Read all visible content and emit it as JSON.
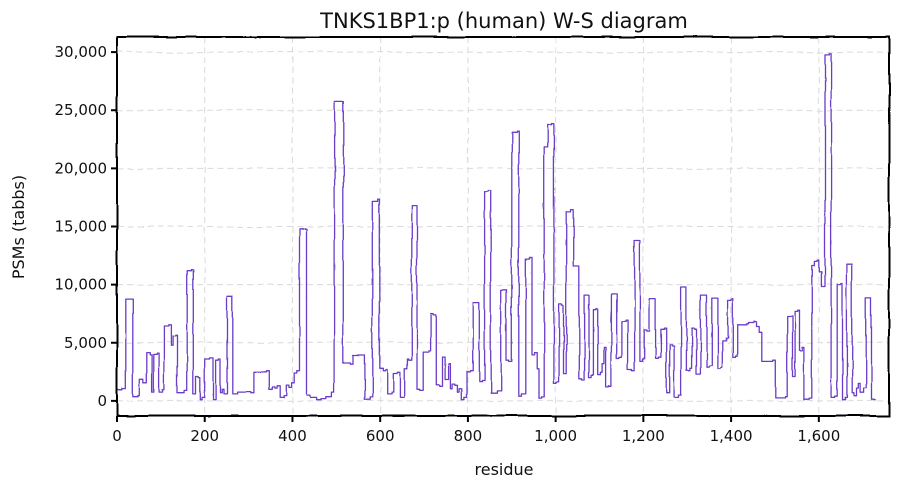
{
  "chart_data": {
    "type": "line",
    "title": "TNKS1BP1:p (human) W-S diagram",
    "xlabel": "residue",
    "ylabel": "PSMs (tabbs)",
    "xlim": [
      0,
      1760
    ],
    "ylim": [
      -1300,
      31300
    ],
    "grid": true,
    "grid_style": "dashed",
    "style": "hand-drawn",
    "line_style": "step",
    "x_ticks": [
      0,
      200,
      400,
      600,
      800,
      1000,
      1200,
      1400,
      1600
    ],
    "x_tick_labels": [
      "0",
      "200",
      "400",
      "600",
      "800",
      "1,000",
      "1,200",
      "1,400",
      "1,600"
    ],
    "y_ticks": [
      0,
      5000,
      10000,
      15000,
      20000,
      25000,
      30000
    ],
    "y_tick_labels": [
      "0",
      "5,000",
      "10,000",
      "15,000",
      "20,000",
      "25,000",
      "30,000"
    ],
    "colors": {
      "line": "#6a3cc9",
      "frame": "#000000",
      "grid": "#d9d9d9"
    },
    "series": [
      {
        "points": [
          [
            0,
            1000
          ],
          [
            12,
            1100
          ],
          [
            20,
            8800
          ],
          [
            32,
            8800
          ],
          [
            36,
            400
          ],
          [
            48,
            500
          ],
          [
            52,
            1900
          ],
          [
            60,
            1600
          ],
          [
            68,
            4200
          ],
          [
            76,
            4000
          ],
          [
            80,
            800
          ],
          [
            84,
            4000
          ],
          [
            92,
            4100
          ],
          [
            96,
            800
          ],
          [
            104,
            1000
          ],
          [
            108,
            6400
          ],
          [
            118,
            6500
          ],
          [
            124,
            4700
          ],
          [
            128,
            5500
          ],
          [
            134,
            5600
          ],
          [
            138,
            700
          ],
          [
            148,
            700
          ],
          [
            154,
            900
          ],
          [
            160,
            11200
          ],
          [
            170,
            11300
          ],
          [
            174,
            600
          ],
          [
            180,
            2100
          ],
          [
            186,
            2000
          ],
          [
            190,
            100
          ],
          [
            194,
            300
          ],
          [
            200,
            3600
          ],
          [
            212,
            3700
          ],
          [
            220,
            100
          ],
          [
            226,
            3500
          ],
          [
            232,
            3600
          ],
          [
            236,
            700
          ],
          [
            240,
            1000
          ],
          [
            244,
            600
          ],
          [
            252,
            9000
          ],
          [
            260,
            9000
          ],
          [
            264,
            600
          ],
          [
            275,
            800
          ],
          [
            305,
            700
          ],
          [
            312,
            2500
          ],
          [
            340,
            2600
          ],
          [
            346,
            1000
          ],
          [
            354,
            1200
          ],
          [
            360,
            1100
          ],
          [
            365,
            1300
          ],
          [
            372,
            300
          ],
          [
            380,
            500
          ],
          [
            386,
            1400
          ],
          [
            392,
            1200
          ],
          [
            398,
            1600
          ],
          [
            404,
            2400
          ],
          [
            410,
            2600
          ],
          [
            416,
            14800
          ],
          [
            425,
            14800
          ],
          [
            432,
            500
          ],
          [
            440,
            300
          ],
          [
            455,
            100
          ],
          [
            465,
            200
          ],
          [
            476,
            400
          ],
          [
            490,
            800
          ],
          [
            496,
            25800
          ],
          [
            512,
            25800
          ],
          [
            516,
            3300
          ],
          [
            532,
            3200
          ],
          [
            538,
            3900
          ],
          [
            560,
            3900
          ],
          [
            564,
            100
          ],
          [
            576,
            300
          ],
          [
            582,
            17200
          ],
          [
            594,
            17400
          ],
          [
            598,
            2800
          ],
          [
            606,
            2600
          ],
          [
            612,
            2700
          ],
          [
            616,
            600
          ],
          [
            626,
            800
          ],
          [
            630,
            2400
          ],
          [
            640,
            2500
          ],
          [
            646,
            300
          ],
          [
            656,
            2800
          ],
          [
            662,
            3600
          ],
          [
            665,
            3500
          ],
          [
            672,
            16800
          ],
          [
            680,
            16800
          ],
          [
            684,
            1000
          ],
          [
            690,
            900
          ],
          [
            698,
            4200
          ],
          [
            712,
            4300
          ],
          [
            716,
            7500
          ],
          [
            722,
            7400
          ],
          [
            728,
            1300
          ],
          [
            736,
            1200
          ],
          [
            742,
            3800
          ],
          [
            748,
            1800
          ],
          [
            756,
            3200
          ],
          [
            760,
            1000
          ],
          [
            764,
            1400
          ],
          [
            770,
            1300
          ],
          [
            776,
            700
          ],
          [
            780,
            1000
          ],
          [
            786,
            100
          ],
          [
            792,
            300
          ],
          [
            798,
            2500
          ],
          [
            806,
            2600
          ],
          [
            812,
            8500
          ],
          [
            822,
            8500
          ],
          [
            826,
            1700
          ],
          [
            832,
            1800
          ],
          [
            838,
            18000
          ],
          [
            846,
            18100
          ],
          [
            852,
            700
          ],
          [
            866,
            900
          ],
          [
            876,
            9600
          ],
          [
            884,
            9600
          ],
          [
            888,
            3500
          ],
          [
            894,
            3400
          ],
          [
            900,
            23100
          ],
          [
            912,
            23200
          ],
          [
            916,
            400
          ],
          [
            922,
            600
          ],
          [
            932,
            12200
          ],
          [
            940,
            12300
          ],
          [
            946,
            4000
          ],
          [
            952,
            4200
          ],
          [
            958,
            2800
          ],
          [
            962,
            200
          ],
          [
            968,
            300
          ],
          [
            974,
            21800
          ],
          [
            982,
            23700
          ],
          [
            990,
            23800
          ],
          [
            996,
            1500
          ],
          [
            1002,
            1600
          ],
          [
            1008,
            8300
          ],
          [
            1014,
            8200
          ],
          [
            1018,
            2300
          ],
          [
            1024,
            16300
          ],
          [
            1034,
            16500
          ],
          [
            1040,
            11600
          ],
          [
            1048,
            11600
          ],
          [
            1054,
            1900
          ],
          [
            1060,
            1800
          ],
          [
            1066,
            9100
          ],
          [
            1072,
            9100
          ],
          [
            1076,
            2000
          ],
          [
            1082,
            2200
          ],
          [
            1086,
            7800
          ],
          [
            1092,
            7900
          ],
          [
            1096,
            2300
          ],
          [
            1102,
            2500
          ],
          [
            1106,
            3200
          ],
          [
            1110,
            4600
          ],
          [
            1114,
            1200
          ],
          [
            1120,
            1300
          ],
          [
            1126,
            9200
          ],
          [
            1134,
            9200
          ],
          [
            1138,
            3600
          ],
          [
            1144,
            3700
          ],
          [
            1150,
            6800
          ],
          [
            1160,
            6900
          ],
          [
            1164,
            2700
          ],
          [
            1174,
            2600
          ],
          [
            1180,
            13800
          ],
          [
            1188,
            13800
          ],
          [
            1192,
            3400
          ],
          [
            1198,
            3600
          ],
          [
            1202,
            6100
          ],
          [
            1208,
            6000
          ],
          [
            1214,
            8800
          ],
          [
            1222,
            8800
          ],
          [
            1228,
            3700
          ],
          [
            1234,
            3800
          ],
          [
            1240,
            6200
          ],
          [
            1248,
            6300
          ],
          [
            1252,
            700
          ],
          [
            1260,
            4900
          ],
          [
            1266,
            4800
          ],
          [
            1270,
            300
          ],
          [
            1280,
            500
          ],
          [
            1286,
            9800
          ],
          [
            1294,
            9800
          ],
          [
            1298,
            2600
          ],
          [
            1306,
            2800
          ],
          [
            1310,
            6300
          ],
          [
            1316,
            6200
          ],
          [
            1320,
            2300
          ],
          [
            1330,
            9100
          ],
          [
            1340,
            9100
          ],
          [
            1344,
            2900
          ],
          [
            1350,
            3000
          ],
          [
            1356,
            8800
          ],
          [
            1364,
            8800
          ],
          [
            1370,
            2700
          ],
          [
            1376,
            2800
          ],
          [
            1380,
            5200
          ],
          [
            1388,
            5400
          ],
          [
            1392,
            8600
          ],
          [
            1400,
            8700
          ],
          [
            1404,
            3700
          ],
          [
            1410,
            3800
          ],
          [
            1414,
            6500
          ],
          [
            1436,
            6600
          ],
          [
            1440,
            6700
          ],
          [
            1452,
            6800
          ],
          [
            1458,
            6400
          ],
          [
            1464,
            5900
          ],
          [
            1470,
            3400
          ],
          [
            1496,
            3500
          ],
          [
            1502,
            300
          ],
          [
            1524,
            400
          ],
          [
            1528,
            7300
          ],
          [
            1536,
            7300
          ],
          [
            1540,
            2100
          ],
          [
            1546,
            7700
          ],
          [
            1552,
            7800
          ],
          [
            1556,
            4300
          ],
          [
            1562,
            4600
          ],
          [
            1566,
            100
          ],
          [
            1578,
            200
          ],
          [
            1584,
            11600
          ],
          [
            1590,
            12000
          ],
          [
            1596,
            12100
          ],
          [
            1600,
            11100
          ],
          [
            1606,
            9800
          ],
          [
            1614,
            29800
          ],
          [
            1624,
            29900
          ],
          [
            1628,
            300
          ],
          [
            1636,
            400
          ],
          [
            1642,
            10000
          ],
          [
            1650,
            10100
          ],
          [
            1654,
            100
          ],
          [
            1660,
            300
          ],
          [
            1664,
            11800
          ],
          [
            1672,
            11800
          ],
          [
            1676,
            700
          ],
          [
            1680,
            400
          ],
          [
            1686,
            1100
          ],
          [
            1690,
            1500
          ],
          [
            1694,
            700
          ],
          [
            1702,
            1100
          ],
          [
            1708,
            8900
          ],
          [
            1716,
            8900
          ],
          [
            1720,
            100
          ],
          [
            1730,
            100
          ]
        ]
      }
    ]
  }
}
